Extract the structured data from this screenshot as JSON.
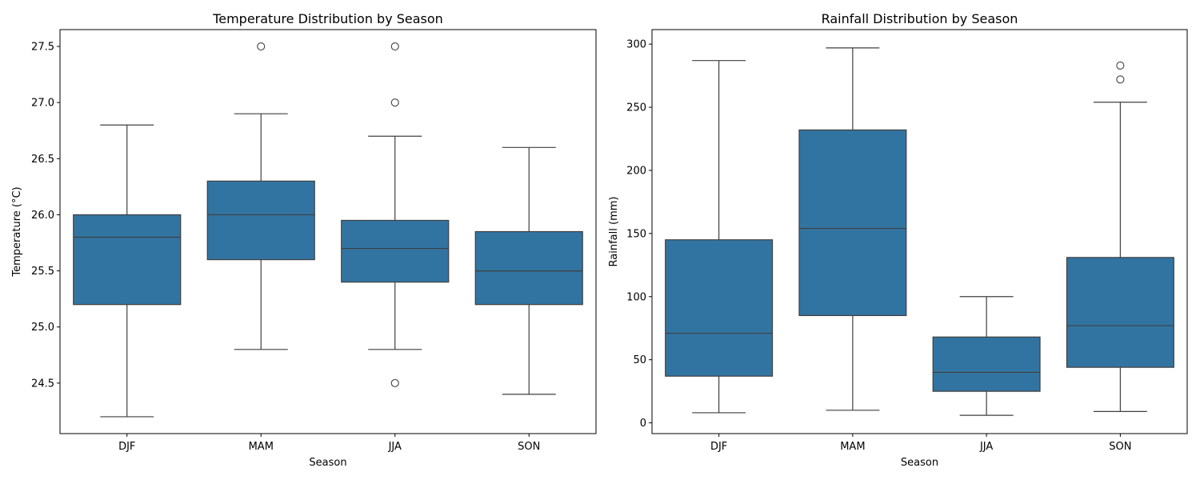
{
  "chart_data": [
    {
      "type": "box",
      "title": "Temperature Distribution by Season",
      "xlabel": "Season",
      "ylabel": "Temperature (°C)",
      "categories": [
        "DJF",
        "MAM",
        "JJA",
        "SON"
      ],
      "ylim": [
        24.05,
        27.65
      ],
      "yticks": [
        24.5,
        25.0,
        25.5,
        26.0,
        26.5,
        27.0,
        27.5
      ],
      "ytick_labels": [
        "24.5",
        "25.0",
        "25.5",
        "26.0",
        "26.5",
        "27.0",
        "27.5"
      ],
      "grid": false,
      "box_color": "#3274a1",
      "boxes": [
        {
          "category": "DJF",
          "whisker_low": 24.2,
          "q1": 25.2,
          "median": 25.8,
          "q3": 26.0,
          "whisker_high": 26.8,
          "outliers": []
        },
        {
          "category": "MAM",
          "whisker_low": 24.8,
          "q1": 25.6,
          "median": 26.0,
          "q3": 26.3,
          "whisker_high": 26.9,
          "outliers": [
            27.5
          ]
        },
        {
          "category": "JJA",
          "whisker_low": 24.8,
          "q1": 25.4,
          "median": 25.7,
          "q3": 25.95,
          "whisker_high": 26.7,
          "outliers": [
            24.5,
            27.0,
            27.5
          ]
        },
        {
          "category": "SON",
          "whisker_low": 24.4,
          "q1": 25.2,
          "median": 25.5,
          "q3": 25.85,
          "whisker_high": 26.6,
          "outliers": []
        }
      ]
    },
    {
      "type": "box",
      "title": "Rainfall Distribution by Season",
      "xlabel": "Season",
      "ylabel": "Rainfall (mm)",
      "categories": [
        "DJF",
        "MAM",
        "JJA",
        "SON"
      ],
      "ylim": [
        -8.5,
        311.5
      ],
      "yticks": [
        0,
        50,
        100,
        150,
        200,
        250,
        300
      ],
      "ytick_labels": [
        "0",
        "50",
        "100",
        "150",
        "200",
        "250",
        "300"
      ],
      "grid": false,
      "box_color": "#3274a1",
      "boxes": [
        {
          "category": "DJF",
          "whisker_low": 8,
          "q1": 37,
          "median": 71,
          "q3": 145,
          "whisker_high": 287,
          "outliers": []
        },
        {
          "category": "MAM",
          "whisker_low": 10,
          "q1": 85,
          "median": 154,
          "q3": 232,
          "whisker_high": 297,
          "outliers": []
        },
        {
          "category": "JJA",
          "whisker_low": 6,
          "q1": 25,
          "median": 40,
          "q3": 68,
          "whisker_high": 100,
          "outliers": []
        },
        {
          "category": "SON",
          "whisker_low": 9,
          "q1": 44,
          "median": 77,
          "q3": 131,
          "whisker_high": 254,
          "outliers": [
            272,
            283
          ]
        }
      ]
    }
  ]
}
